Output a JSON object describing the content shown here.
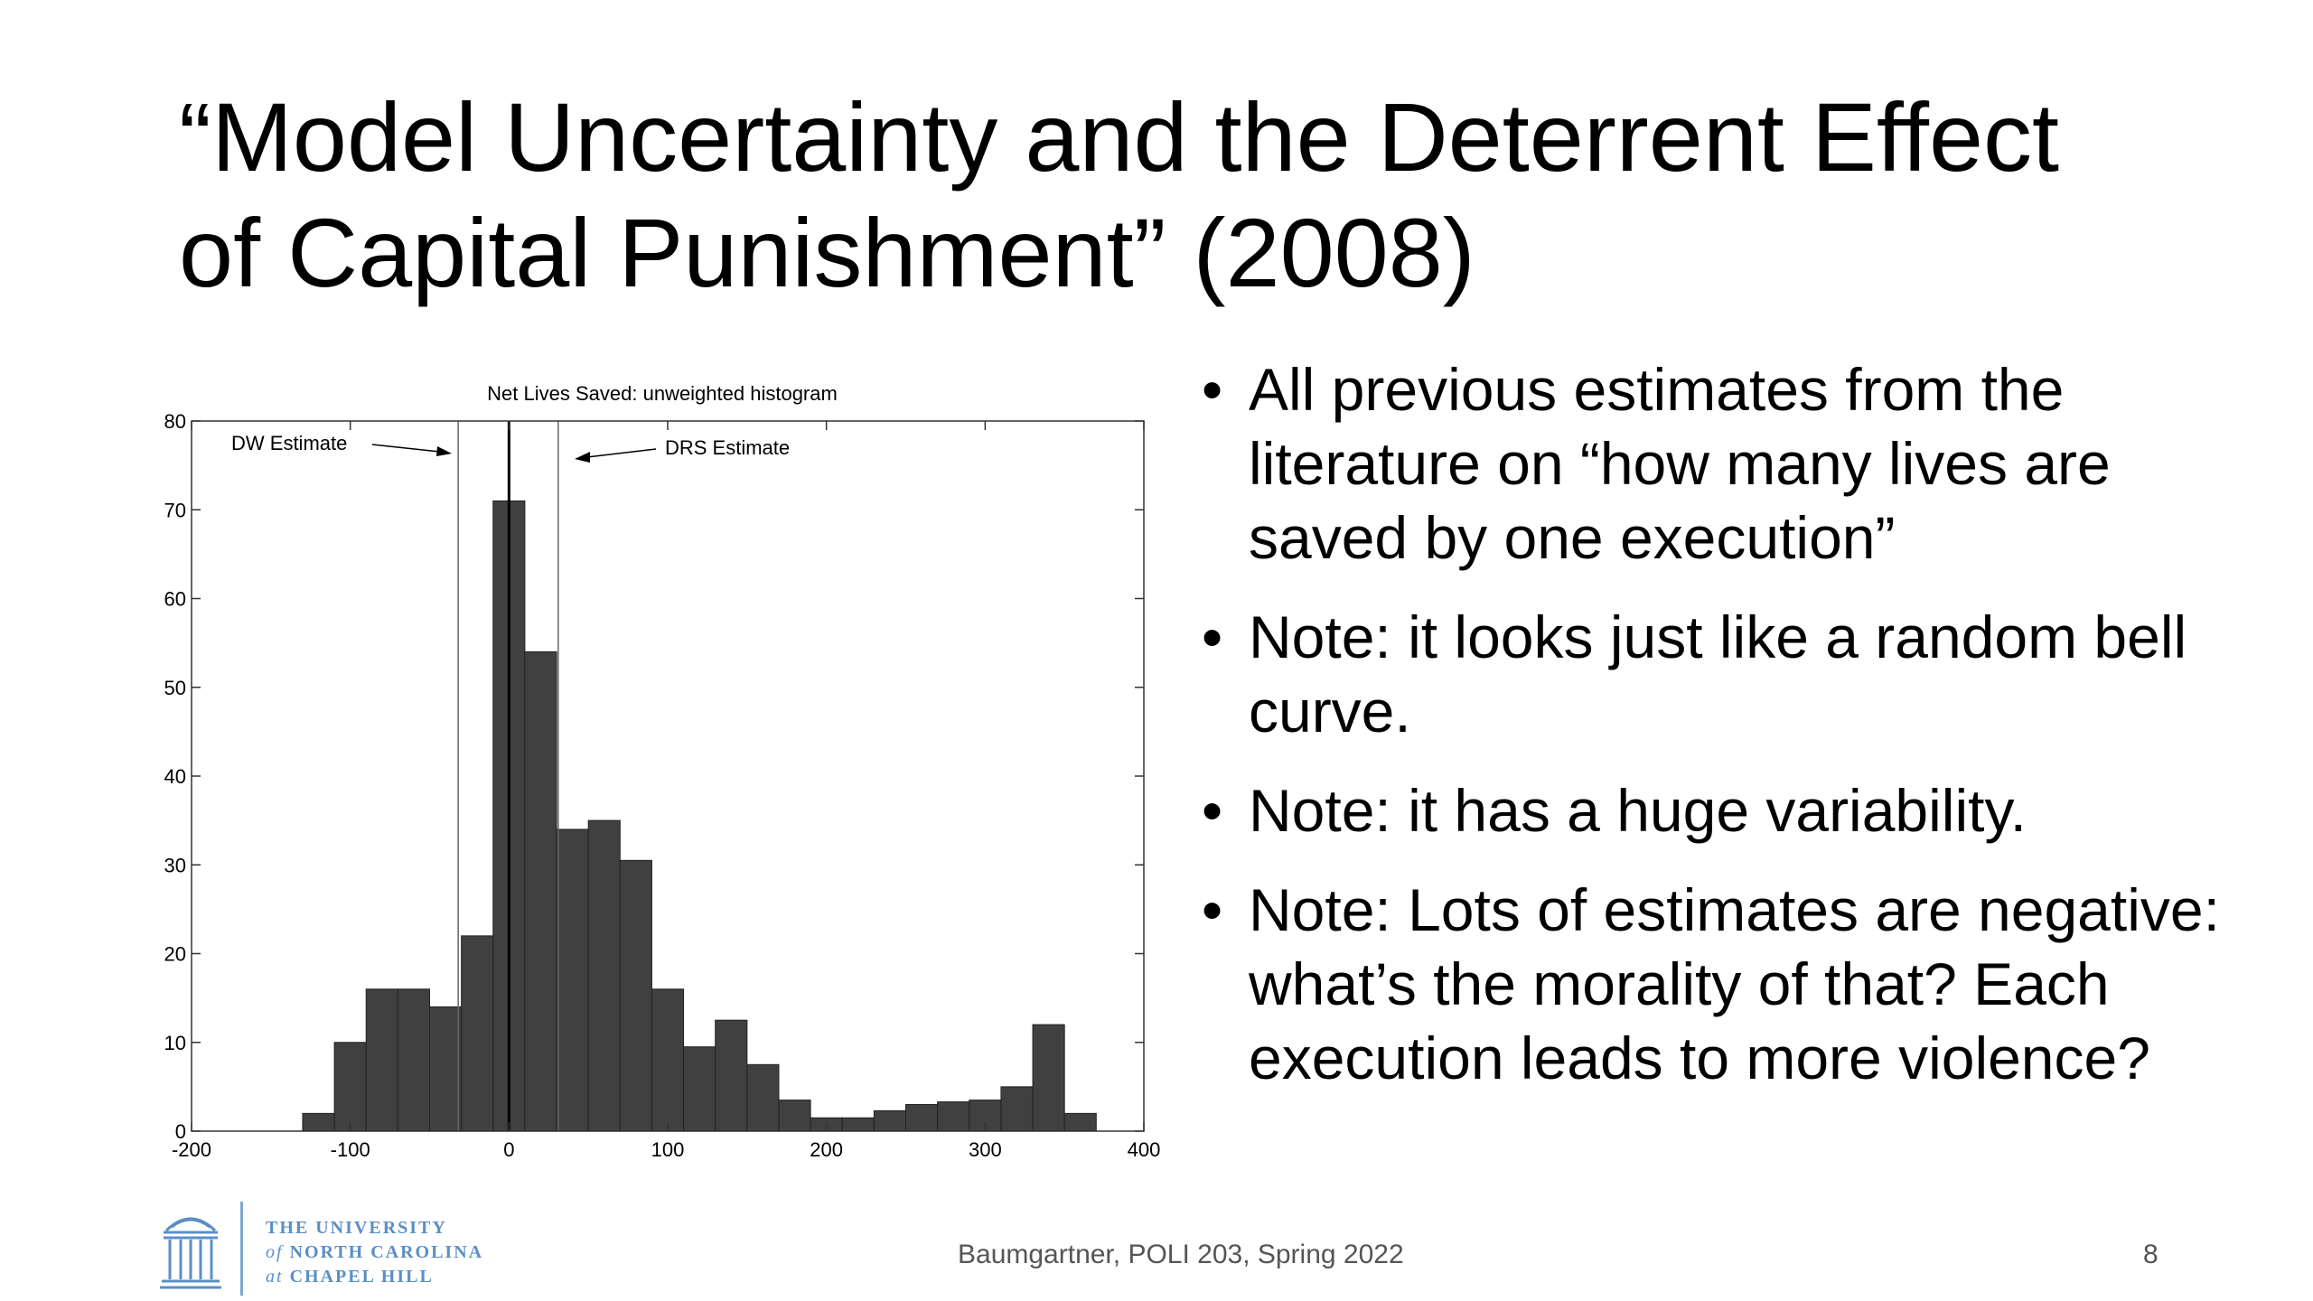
{
  "slide": {
    "title_line1": "“Model Uncertainty and the Deterrent Effect",
    "title_line2": "of Capital Punishment” (2008)",
    "bullets": [
      "All previous estimates from the literature on “how many lives are saved by one execution”",
      "Note: it looks just like a random bell curve.",
      "Note: it has a huge variability.",
      "Note: Lots of estimates are negative: what’s the morality of that? Each execution leads to more violence?"
    ],
    "bullet_glyph": "•",
    "footer": "Baumgartner, POLI 203, Spring 2022",
    "page_number": "8",
    "logo": {
      "line1": "THE UNIVERSITY",
      "line2_prefix": "of",
      "line2": "NORTH CAROLINA",
      "line3_prefix": "at",
      "line3": "CHAPEL HILL",
      "color": "#5b8fc4",
      "icon": "old-well-icon"
    }
  },
  "chart_data": {
    "type": "bar",
    "title": "Net Lives Saved: unweighted histogram",
    "xlim": [
      -200,
      400
    ],
    "ylim": [
      0,
      80
    ],
    "xticks": [
      -200,
      -100,
      0,
      100,
      200,
      300,
      400
    ],
    "yticks": [
      0,
      10,
      20,
      30,
      40,
      50,
      60,
      70,
      80
    ],
    "bin_width": 20,
    "bin_starts": [
      -130,
      -110,
      -90,
      -70,
      -50,
      -30,
      -10,
      10,
      30,
      50,
      70,
      90,
      110,
      130,
      150,
      170,
      190,
      210,
      230,
      250,
      270,
      290,
      310,
      330,
      350
    ],
    "values": [
      2,
      10,
      16,
      16,
      14,
      22,
      71,
      54,
      34,
      35,
      30.5,
      16,
      9.5,
      12.5,
      7.5,
      3.5,
      1.5,
      1.5,
      2.3,
      3,
      3.3,
      3.5,
      5,
      12,
      2
    ],
    "bar_color": "#404040",
    "reference_lines": [
      {
        "label": "DW Estimate",
        "x": -32
      },
      {
        "label": "",
        "x": 0
      },
      {
        "label": "DRS Estimate",
        "x": 31
      }
    ],
    "annotations": {
      "dw": "DW Estimate",
      "drs": "DRS Estimate"
    }
  }
}
